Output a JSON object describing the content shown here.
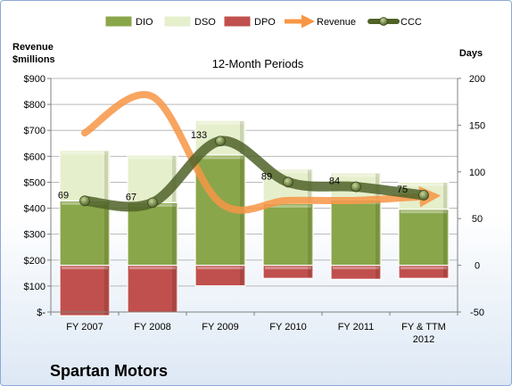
{
  "chart_data": {
    "type": "bar",
    "title": "12-Month Periods",
    "company": "Spartan Motors",
    "categories": [
      [
        "FY 2007"
      ],
      [
        "FY 2008"
      ],
      [
        "FY 2009"
      ],
      [
        "FY 2010"
      ],
      [
        "FY 2011"
      ],
      [
        "FY & TTM",
        "2012"
      ]
    ],
    "left_axis": {
      "title": [
        "Revenue",
        "$millions"
      ],
      "range": [
        0,
        900
      ],
      "ticks": [
        0,
        100,
        200,
        300,
        400,
        500,
        600,
        700,
        800,
        900
      ],
      "tick_labels": [
        "$-",
        "$100",
        "$200",
        "$300",
        "$400",
        "$500",
        "$600",
        "$700",
        "$800",
        "$900"
      ]
    },
    "right_axis": {
      "title": "Days",
      "range": [
        -50,
        200
      ],
      "ticks": [
        -50,
        0,
        50,
        100,
        150,
        200
      ],
      "tick_labels": [
        "-50",
        "0",
        "50",
        "100",
        "150",
        "200"
      ]
    },
    "gridlines": true,
    "legend_position": "top",
    "series": [
      {
        "name": "DIO",
        "type": "stacked-bar",
        "axis": "right",
        "color": "#8aa64a",
        "values": [
          69,
          67,
          118,
          66,
          70,
          60
        ]
      },
      {
        "name": "DSO",
        "type": "stacked-bar",
        "axis": "right",
        "color": "#e6efcc",
        "values": [
          54,
          51,
          37,
          37,
          29,
          29
        ]
      },
      {
        "name": "DPO",
        "type": "stacked-bar",
        "axis": "right",
        "color": "#c0504d",
        "values": [
          -54,
          -51,
          -22,
          -14,
          -15,
          -14
        ]
      },
      {
        "name": "Revenue",
        "type": "line",
        "axis": "left",
        "color": "#f79646",
        "values": [
          690,
          830,
          420,
          430,
          430,
          445
        ]
      },
      {
        "name": "CCC",
        "type": "line",
        "axis": "right",
        "color": "#4f6228",
        "values": [
          69,
          67,
          133,
          89,
          84,
          75
        ],
        "data_labels": [
          "69",
          "67",
          "133",
          "89",
          "84",
          "75"
        ]
      }
    ]
  }
}
